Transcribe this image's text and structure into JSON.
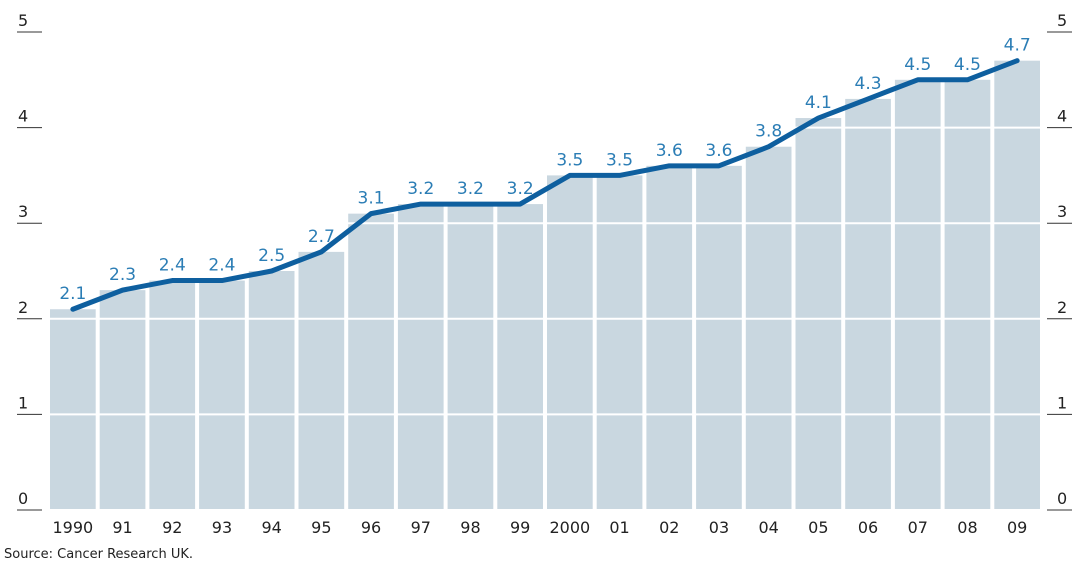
{
  "chart_data": {
    "type": "bar",
    "categories": [
      "1990",
      "91",
      "92",
      "93",
      "94",
      "95",
      "96",
      "97",
      "98",
      "99",
      "2000",
      "01",
      "02",
      "03",
      "04",
      "05",
      "06",
      "07",
      "08",
      "09"
    ],
    "values": [
      2.1,
      2.3,
      2.4,
      2.4,
      2.5,
      2.7,
      3.1,
      3.2,
      3.2,
      3.2,
      3.5,
      3.5,
      3.6,
      3.6,
      3.8,
      4.1,
      4.3,
      4.5,
      4.5,
      4.7
    ],
    "color": "#c9d7e0",
    "line_overlay": true,
    "line_color": "#0e5f9f",
    "label_color": "#2b7db5",
    "ylim": [
      0,
      5
    ],
    "yticks": [
      0,
      1,
      2,
      3,
      4,
      5
    ],
    "y2lim": [
      0,
      5
    ],
    "y2ticks": [
      0,
      1,
      2,
      3,
      4,
      5
    ],
    "grid": true,
    "source": "Source: Cancer Research UK."
  }
}
